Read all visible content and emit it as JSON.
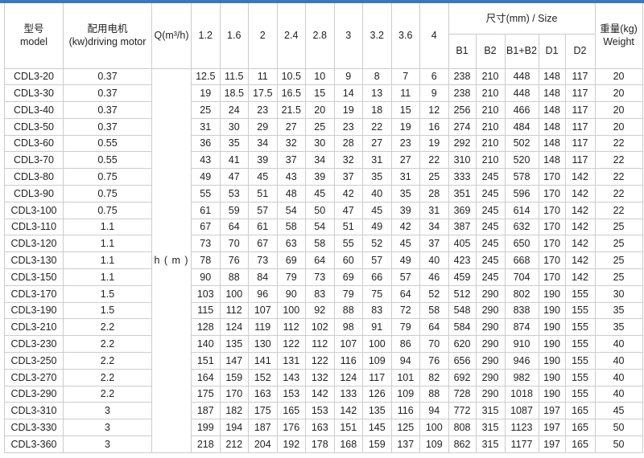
{
  "page": {
    "accent_color": "#3a78bc",
    "border_color": "#cccccc",
    "background": "#ffffff",
    "text_color": "#222222"
  },
  "header": {
    "model_zh": "型号",
    "model_en": "model",
    "motor_zh": "配用电机",
    "motor_en": "(kw)driving motor",
    "q_label": "Q(m³/h)",
    "flow_columns": [
      "1.2",
      "1.6",
      "2",
      "2.4",
      "2.8",
      "3",
      "3.2",
      "3.6",
      "4"
    ],
    "size_label": "尺寸(mm) / Size",
    "size_columns": [
      "B1",
      "B2",
      "B1+B2",
      "D1",
      "D2"
    ],
    "weight_zh": "重量(kg)",
    "weight_en": "Weight"
  },
  "body": {
    "head_unit_label": "h ( m )",
    "rows": [
      {
        "model": "CDL3-20",
        "motor": "0.37",
        "heads": [
          "12.5",
          "11.5",
          "11",
          "10.5",
          "10",
          "9",
          "8",
          "7",
          "6"
        ],
        "sizes": [
          "238",
          "210",
          "448",
          "148",
          "117"
        ],
        "weight": "20"
      },
      {
        "model": "CDL3-30",
        "motor": "0.37",
        "heads": [
          "19",
          "18.5",
          "17.5",
          "16.5",
          "15",
          "14",
          "13",
          "11",
          "9"
        ],
        "sizes": [
          "238",
          "210",
          "448",
          "148",
          "117"
        ],
        "weight": "20"
      },
      {
        "model": "CDL3-40",
        "motor": "0.37",
        "heads": [
          "25",
          "24",
          "23",
          "21.5",
          "20",
          "19",
          "18",
          "15",
          "12"
        ],
        "sizes": [
          "256",
          "210",
          "466",
          "148",
          "117"
        ],
        "weight": "20"
      },
      {
        "model": "CDL3-50",
        "motor": "0.37",
        "heads": [
          "31",
          "30",
          "29",
          "27",
          "25",
          "23",
          "22",
          "19",
          "16"
        ],
        "sizes": [
          "274",
          "210",
          "484",
          "148",
          "117"
        ],
        "weight": "20"
      },
      {
        "model": "CDL3-60",
        "motor": "0.55",
        "heads": [
          "36",
          "35",
          "34",
          "32",
          "30",
          "28",
          "27",
          "23",
          "19"
        ],
        "sizes": [
          "292",
          "210",
          "502",
          "148",
          "117"
        ],
        "weight": "22"
      },
      {
        "model": "CDL3-70",
        "motor": "0.55",
        "heads": [
          "43",
          "41",
          "39",
          "37",
          "34",
          "32",
          "31",
          "27",
          "22"
        ],
        "sizes": [
          "310",
          "210",
          "520",
          "148",
          "117"
        ],
        "weight": "22"
      },
      {
        "model": "CDL3-80",
        "motor": "0.75",
        "heads": [
          "49",
          "47",
          "45",
          "43",
          "39",
          "37",
          "35",
          "31",
          "25"
        ],
        "sizes": [
          "333",
          "245",
          "578",
          "170",
          "142"
        ],
        "weight": "22"
      },
      {
        "model": "CDL3-90",
        "motor": "0.75",
        "heads": [
          "55",
          "53",
          "51",
          "48",
          "45",
          "42",
          "40",
          "35",
          "28"
        ],
        "sizes": [
          "351",
          "245",
          "596",
          "170",
          "142"
        ],
        "weight": "22"
      },
      {
        "model": "CDL3-100",
        "motor": "0.75",
        "heads": [
          "61",
          "59",
          "57",
          "54",
          "50",
          "47",
          "45",
          "39",
          "31"
        ],
        "sizes": [
          "369",
          "245",
          "614",
          "170",
          "142"
        ],
        "weight": "22"
      },
      {
        "model": "CDL3-110",
        "motor": "1.1",
        "heads": [
          "67",
          "64",
          "61",
          "58",
          "54",
          "51",
          "49",
          "42",
          "34"
        ],
        "sizes": [
          "387",
          "245",
          "632",
          "170",
          "142"
        ],
        "weight": "25"
      },
      {
        "model": "CDL3-120",
        "motor": "1.1",
        "heads": [
          "73",
          "70",
          "67",
          "63",
          "58",
          "55",
          "52",
          "45",
          "37"
        ],
        "sizes": [
          "405",
          "245",
          "650",
          "170",
          "142"
        ],
        "weight": "25"
      },
      {
        "model": "CDL3-130",
        "motor": "1.1",
        "heads": [
          "78",
          "76",
          "73",
          "69",
          "64",
          "60",
          "57",
          "49",
          "40"
        ],
        "sizes": [
          "423",
          "245",
          "668",
          "170",
          "142"
        ],
        "weight": "25"
      },
      {
        "model": "CDL3-150",
        "motor": "1.1",
        "heads": [
          "90",
          "88",
          "84",
          "79",
          "73",
          "69",
          "66",
          "57",
          "46"
        ],
        "sizes": [
          "459",
          "245",
          "704",
          "170",
          "142"
        ],
        "weight": "25"
      },
      {
        "model": "CDL3-170",
        "motor": "1.5",
        "heads": [
          "103",
          "100",
          "96",
          "90",
          "83",
          "79",
          "75",
          "64",
          "52"
        ],
        "sizes": [
          "512",
          "290",
          "802",
          "190",
          "155"
        ],
        "weight": "30"
      },
      {
        "model": "CDL3-190",
        "motor": "1.5",
        "heads": [
          "115",
          "112",
          "107",
          "100",
          "92",
          "88",
          "83",
          "72",
          "58"
        ],
        "sizes": [
          "548",
          "290",
          "838",
          "190",
          "155"
        ],
        "weight": "35"
      },
      {
        "model": "CDL3-210",
        "motor": "2.2",
        "heads": [
          "128",
          "124",
          "119",
          "112",
          "102",
          "98",
          "91",
          "79",
          "64"
        ],
        "sizes": [
          "584",
          "290",
          "874",
          "190",
          "155"
        ],
        "weight": "35"
      },
      {
        "model": "CDL3-230",
        "motor": "2.2",
        "heads": [
          "140",
          "135",
          "130",
          "122",
          "112",
          "107",
          "100",
          "86",
          "70"
        ],
        "sizes": [
          "620",
          "290",
          "910",
          "190",
          "155"
        ],
        "weight": "40"
      },
      {
        "model": "CDL3-250",
        "motor": "2.2",
        "heads": [
          "151",
          "147",
          "141",
          "131",
          "122",
          "116",
          "109",
          "94",
          "76"
        ],
        "sizes": [
          "656",
          "290",
          "946",
          "190",
          "155"
        ],
        "weight": "40"
      },
      {
        "model": "CDL3-270",
        "motor": "2.2",
        "heads": [
          "164",
          "159",
          "152",
          "143",
          "132",
          "124",
          "117",
          "101",
          "82"
        ],
        "sizes": [
          "692",
          "290",
          "982",
          "190",
          "155"
        ],
        "weight": "40"
      },
      {
        "model": "CDL3-290",
        "motor": "2.2",
        "heads": [
          "175",
          "170",
          "163",
          "153",
          "142",
          "133",
          "126",
          "109",
          "88"
        ],
        "sizes": [
          "728",
          "290",
          "1018",
          "190",
          "155"
        ],
        "weight": "40"
      },
      {
        "model": "CDL3-310",
        "motor": "3",
        "heads": [
          "187",
          "182",
          "175",
          "165",
          "153",
          "142",
          "135",
          "116",
          "94"
        ],
        "sizes": [
          "772",
          "315",
          "1087",
          "197",
          "165"
        ],
        "weight": "45"
      },
      {
        "model": "CDL3-330",
        "motor": "3",
        "heads": [
          "199",
          "194",
          "187",
          "176",
          "163",
          "151",
          "145",
          "125",
          "100"
        ],
        "sizes": [
          "808",
          "315",
          "1123",
          "197",
          "165"
        ],
        "weight": "50"
      },
      {
        "model": "CDL3-360",
        "motor": "3",
        "heads": [
          "218",
          "212",
          "204",
          "192",
          "178",
          "168",
          "159",
          "137",
          "109"
        ],
        "sizes": [
          "862",
          "315",
          "1177",
          "197",
          "165"
        ],
        "weight": "50"
      }
    ]
  }
}
